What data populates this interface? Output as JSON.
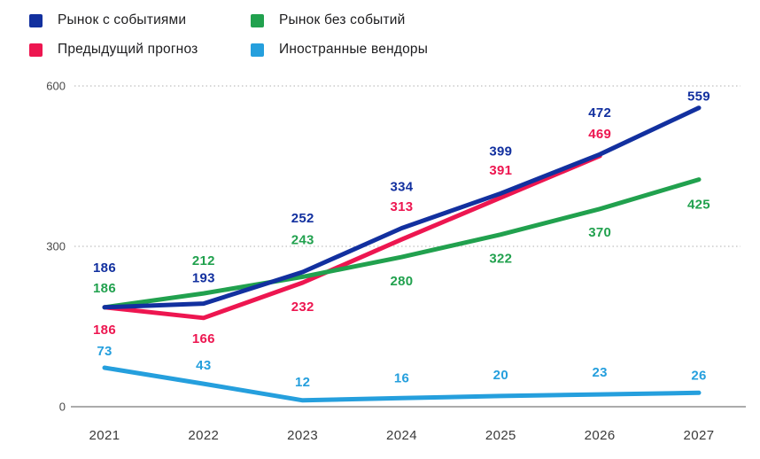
{
  "legend": {
    "items": [
      {
        "label": "Рынок с событиями",
        "color": "#12309f"
      },
      {
        "label": "Предыдущий прогноз",
        "color": "#ed1650"
      },
      {
        "label": "Рынок без событий",
        "color": "#21a14e"
      },
      {
        "label": "Иностранные вендоры",
        "color": "#259fdd"
      }
    ]
  },
  "chart_data": {
    "type": "line",
    "x": [
      "2021",
      "2022",
      "2023",
      "2024",
      "2025",
      "2026",
      "2027"
    ],
    "ylim": [
      0,
      600
    ],
    "yticks": [
      0,
      300,
      600
    ],
    "grid": "dotted horizontal gridlines at 300 and 600, solid baseline at 0",
    "legend_position": "top-left, two columns",
    "data_labels": "every point labeled with its value in series color",
    "series": [
      {
        "name": "Иностранные вендоры",
        "color": "#259fdd",
        "values": [
          73,
          43,
          12,
          16,
          20,
          23,
          26
        ],
        "label_dy": [
          -19,
          -21,
          -21,
          -23,
          -24,
          -25,
          -20
        ]
      },
      {
        "name": "Предыдущий прогноз",
        "color": "#ed1650",
        "values": [
          186,
          166,
          232,
          313,
          391,
          469,
          null
        ],
        "label_dy": [
          25,
          23,
          27,
          -37,
          -31,
          -25,
          0
        ]
      },
      {
        "name": "Рынок без событий",
        "color": "#21a14e",
        "values": [
          186,
          212,
          243,
          280,
          322,
          370,
          425
        ],
        "label_dy": [
          -22,
          -37,
          -42,
          27,
          27,
          26,
          28
        ]
      },
      {
        "name": "Рынок с событиями",
        "color": "#12309f",
        "values": [
          186,
          193,
          252,
          334,
          399,
          472,
          559
        ],
        "label_dy": [
          -45,
          -29,
          -61,
          -47,
          -48,
          -47,
          -13
        ]
      }
    ]
  }
}
